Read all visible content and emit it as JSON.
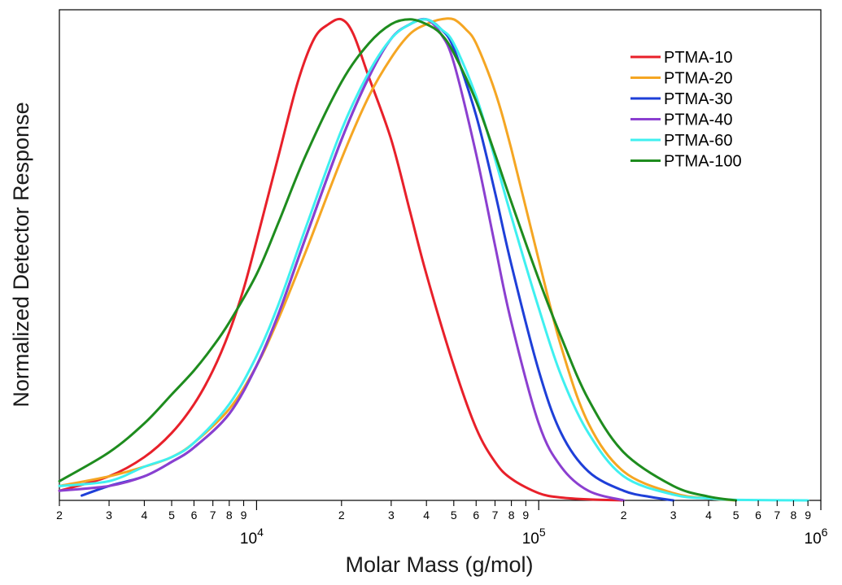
{
  "chart_data": {
    "type": "line",
    "xlabel": "Molar Mass (g/mol)",
    "ylabel": "Normalized Detector Response",
    "x_scale": "log",
    "xlim": [
      2000,
      1000000
    ],
    "ylim": [
      0,
      1.02
    ],
    "grid": false,
    "legend_position": "top-right",
    "major_tick_labels": [
      {
        "value": 10000,
        "base": "10",
        "exp": "4"
      },
      {
        "value": 100000,
        "base": "10",
        "exp": "5"
      },
      {
        "value": 1000000,
        "base": "10",
        "exp": "6"
      }
    ],
    "minor_tick_labels": [
      {
        "value": 2000,
        "label": "2"
      },
      {
        "value": 3000,
        "label": "3"
      },
      {
        "value": 4000,
        "label": "4"
      },
      {
        "value": 5000,
        "label": "5"
      },
      {
        "value": 6000,
        "label": "6"
      },
      {
        "value": 7000,
        "label": "7"
      },
      {
        "value": 8000,
        "label": "8"
      },
      {
        "value": 9000,
        "label": "9"
      },
      {
        "value": 20000,
        "label": "2"
      },
      {
        "value": 30000,
        "label": "3"
      },
      {
        "value": 40000,
        "label": "4"
      },
      {
        "value": 50000,
        "label": "5"
      },
      {
        "value": 60000,
        "label": "6"
      },
      {
        "value": 70000,
        "label": "7"
      },
      {
        "value": 80000,
        "label": "8"
      },
      {
        "value": 90000,
        "label": "9"
      },
      {
        "value": 200000,
        "label": "2"
      },
      {
        "value": 300000,
        "label": "3"
      },
      {
        "value": 400000,
        "label": "4"
      },
      {
        "value": 500000,
        "label": "5"
      },
      {
        "value": 600000,
        "label": "6"
      },
      {
        "value": 700000,
        "label": "7"
      },
      {
        "value": 800000,
        "label": "8"
      },
      {
        "value": 900000,
        "label": "9"
      }
    ],
    "series": [
      {
        "name": "PTMA-10",
        "color": "#e8202a",
        "x": [
          2000,
          3000,
          4000,
          5000,
          6000,
          7000,
          8000,
          9000,
          10000,
          12000,
          14000,
          16000,
          18000,
          20000,
          22000,
          25000,
          30000,
          35000,
          40000,
          50000,
          60000,
          70000,
          80000,
          100000,
          120000,
          150000,
          200000
        ],
        "y": [
          0.02,
          0.05,
          0.09,
          0.14,
          0.2,
          0.27,
          0.35,
          0.44,
          0.54,
          0.72,
          0.87,
          0.96,
          0.99,
          1.0,
          0.97,
          0.88,
          0.75,
          0.6,
          0.47,
          0.28,
          0.15,
          0.08,
          0.045,
          0.015,
          0.006,
          0.002,
          0.0
        ]
      },
      {
        "name": "PTMA-20",
        "color": "#f5a623",
        "x": [
          2000,
          3000,
          4000,
          5000,
          6000,
          8000,
          10000,
          12000,
          15000,
          20000,
          25000,
          30000,
          35000,
          40000,
          45000,
          50000,
          55000,
          60000,
          70000,
          80000,
          100000,
          120000,
          150000,
          200000,
          300000,
          400000,
          500000
        ],
        "y": [
          0.03,
          0.05,
          0.07,
          0.09,
          0.12,
          0.19,
          0.28,
          0.38,
          0.52,
          0.71,
          0.84,
          0.92,
          0.97,
          0.99,
          1.0,
          1.0,
          0.98,
          0.95,
          0.85,
          0.73,
          0.5,
          0.32,
          0.16,
          0.06,
          0.015,
          0.004,
          0.0
        ]
      },
      {
        "name": "PTMA-30",
        "color": "#1e3fd8",
        "x": [
          2400,
          3000,
          4000,
          5000,
          6000,
          8000,
          10000,
          12000,
          15000,
          20000,
          25000,
          30000,
          35000,
          40000,
          45000,
          50000,
          60000,
          70000,
          80000,
          100000,
          120000,
          150000,
          200000,
          250000,
          300000
        ],
        "y": [
          0.01,
          0.03,
          0.05,
          0.08,
          0.11,
          0.18,
          0.28,
          0.39,
          0.55,
          0.75,
          0.88,
          0.96,
          0.99,
          1.0,
          0.98,
          0.94,
          0.8,
          0.64,
          0.49,
          0.27,
          0.14,
          0.06,
          0.02,
          0.007,
          0.0
        ]
      },
      {
        "name": "PTMA-40",
        "color": "#8b3fd0",
        "x": [
          2000,
          3000,
          4000,
          5000,
          6000,
          8000,
          10000,
          12000,
          15000,
          20000,
          25000,
          30000,
          35000,
          40000,
          45000,
          50000,
          60000,
          70000,
          80000,
          100000,
          120000,
          150000,
          200000
        ],
        "y": [
          0.02,
          0.03,
          0.05,
          0.08,
          0.11,
          0.18,
          0.28,
          0.39,
          0.55,
          0.75,
          0.88,
          0.96,
          0.99,
          1.0,
          0.97,
          0.91,
          0.72,
          0.53,
          0.37,
          0.16,
          0.07,
          0.02,
          0.0
        ]
      },
      {
        "name": "PTMA-60",
        "color": "#3ff0f0",
        "x": [
          2000,
          3000,
          4000,
          5000,
          6000,
          8000,
          10000,
          12000,
          15000,
          20000,
          25000,
          30000,
          35000,
          40000,
          45000,
          50000,
          60000,
          70000,
          80000,
          100000,
          120000,
          150000,
          200000,
          300000,
          400000,
          500000,
          900000
        ],
        "y": [
          0.03,
          0.04,
          0.07,
          0.09,
          0.12,
          0.2,
          0.3,
          0.41,
          0.57,
          0.77,
          0.89,
          0.96,
          0.99,
          1.0,
          0.98,
          0.95,
          0.84,
          0.71,
          0.59,
          0.4,
          0.26,
          0.14,
          0.05,
          0.012,
          0.004,
          0.001,
          0.0
        ]
      },
      {
        "name": "PTMA-100",
        "color": "#1e8c1e",
        "x": [
          2000,
          3000,
          4000,
          5000,
          6000,
          7000,
          8000,
          10000,
          12000,
          15000,
          20000,
          25000,
          30000,
          35000,
          40000,
          45000,
          50000,
          60000,
          70000,
          80000,
          100000,
          120000,
          150000,
          200000,
          300000,
          400000,
          500000
        ],
        "y": [
          0.04,
          0.1,
          0.16,
          0.22,
          0.27,
          0.32,
          0.37,
          0.47,
          0.58,
          0.72,
          0.87,
          0.95,
          0.99,
          1.0,
          0.99,
          0.97,
          0.93,
          0.83,
          0.72,
          0.62,
          0.46,
          0.34,
          0.21,
          0.1,
          0.03,
          0.008,
          0.0
        ]
      }
    ]
  }
}
